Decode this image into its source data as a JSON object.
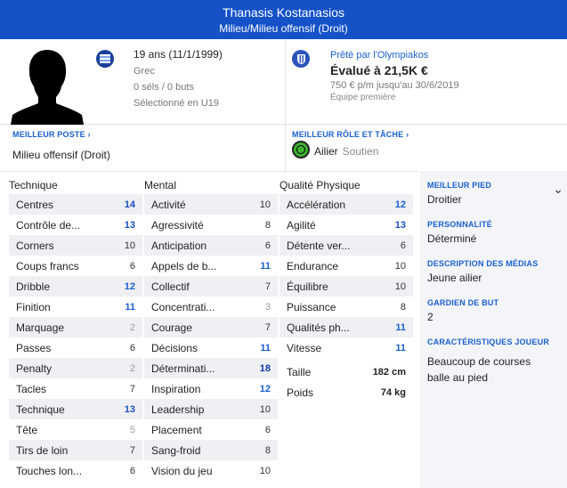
{
  "header": {
    "name": "Thanasis Kostanasios",
    "position": "Milieu/Milieu offensif (Droit)"
  },
  "player": {
    "age": "19 ans (11/1/1999)",
    "nationality": "Grec",
    "caps": "0 séls / 0 buts",
    "selection": "Sélectionné en U19"
  },
  "contract": {
    "loan_label": "Prêté par l'Olympiakos",
    "value": "Évalué à 21,5K €",
    "wage": "750 € p/m jusqu'au 30/6/2019",
    "squad": "Équipe première"
  },
  "best_position": {
    "label": "MEILLEUR POSTE",
    "value": "Milieu offensif (Droit)"
  },
  "best_role": {
    "label": "MEILLEUR RÔLE ET TÂCHE",
    "role": "Ailier",
    "duty": "Soutien"
  },
  "columns": {
    "technique": "Technique",
    "mental": "Mental",
    "physical": "Qualité Physique"
  },
  "technique": [
    {
      "n": "Centres",
      "v": "14"
    },
    {
      "n": "Contrôle de...",
      "v": "13"
    },
    {
      "n": "Corners",
      "v": "10"
    },
    {
      "n": "Coups francs",
      "v": "6"
    },
    {
      "n": "Dribble",
      "v": "12"
    },
    {
      "n": "Finition",
      "v": "11"
    },
    {
      "n": "Marquage",
      "v": "2"
    },
    {
      "n": "Passes",
      "v": "6"
    },
    {
      "n": "Penalty",
      "v": "2"
    },
    {
      "n": "Tacles",
      "v": "7"
    },
    {
      "n": "Technique",
      "v": "13"
    },
    {
      "n": "Tête",
      "v": "5"
    },
    {
      "n": "Tirs de loin",
      "v": "7"
    },
    {
      "n": "Touches lon...",
      "v": "6"
    }
  ],
  "mental": [
    {
      "n": "Activité",
      "v": "10"
    },
    {
      "n": "Agressivité",
      "v": "8"
    },
    {
      "n": "Anticipation",
      "v": "6"
    },
    {
      "n": "Appels de b...",
      "v": "11"
    },
    {
      "n": "Collectif",
      "v": "7"
    },
    {
      "n": "Concentrati...",
      "v": "3"
    },
    {
      "n": "Courage",
      "v": "7"
    },
    {
      "n": "Décisions",
      "v": "11"
    },
    {
      "n": "Déterminati...",
      "v": "18"
    },
    {
      "n": "Inspiration",
      "v": "12"
    },
    {
      "n": "Leadership",
      "v": "10"
    },
    {
      "n": "Placement",
      "v": "6"
    },
    {
      "n": "Sang-froid",
      "v": "8"
    },
    {
      "n": "Vision du jeu",
      "v": "10"
    }
  ],
  "physical": [
    {
      "n": "Accélération",
      "v": "12"
    },
    {
      "n": "Agilité",
      "v": "13"
    },
    {
      "n": "Détente ver...",
      "v": "6"
    },
    {
      "n": "Endurance",
      "v": "10"
    },
    {
      "n": "Équilibre",
      "v": "10"
    },
    {
      "n": "Puissance",
      "v": "8"
    },
    {
      "n": "Qualités ph...",
      "v": "11"
    },
    {
      "n": "Vitesse",
      "v": "11"
    }
  ],
  "body": {
    "height_label": "Taille",
    "height": "182 cm",
    "weight_label": "Poids",
    "weight": "74 kg"
  },
  "side": {
    "foot_label": "MEILLEUR PIED",
    "foot": "Droitier",
    "personality_label": "PERSONNALITÉ",
    "personality": "Déterminé",
    "media_label": "DESCRIPTION DES MÉDIAS",
    "media": "Jeune ailier",
    "gk_label": "GARDIEN DE BUT",
    "gk": "2",
    "traits_label": "CARACTÉRISTIQUES JOUEUR",
    "traits": "Beaucoup de courses balle au pied"
  }
}
